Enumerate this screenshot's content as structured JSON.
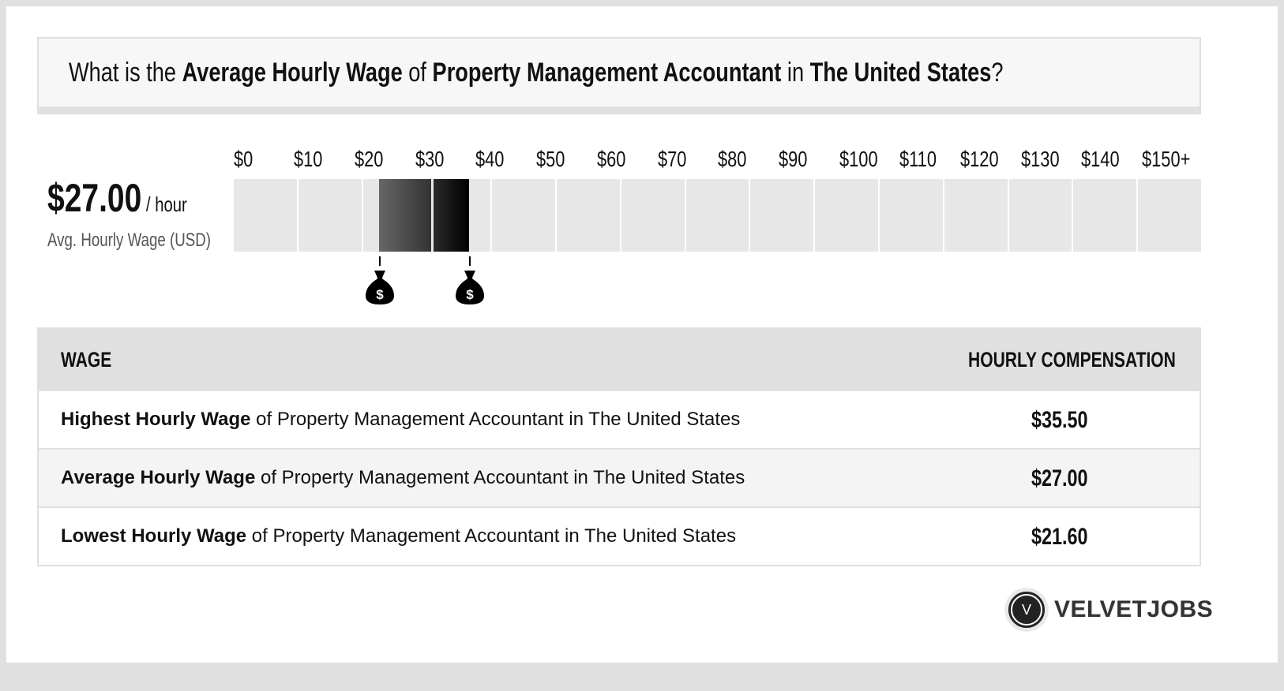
{
  "title": {
    "prefix": "What is the ",
    "metric": "Average Hourly Wage",
    "of": " of ",
    "job": "Property Management Accountant",
    "in": " in ",
    "location": "The United States",
    "suffix": "?"
  },
  "summary": {
    "value": "$27.00",
    "unit": " / hour",
    "label": "Avg. Hourly Wage (USD)"
  },
  "scale": {
    "ticks": [
      "$0",
      "$10",
      "$20",
      "$30",
      "$40",
      "$50",
      "$60",
      "$70",
      "$80",
      "$90",
      "$100",
      "$110",
      "$120",
      "$130",
      "$140",
      "$150+"
    ],
    "low_marker": "money-bag",
    "high_marker": "money-bag"
  },
  "table": {
    "headers": {
      "wage": "WAGE",
      "compensation": "HOURLY COMPENSATION"
    },
    "rows": [
      {
        "bold": "Highest Hourly Wage",
        "rest": " of Property Management Accountant in The United States",
        "value": "$35.50"
      },
      {
        "bold": "Average Hourly Wage",
        "rest": " of Property Management Accountant in The United States",
        "value": "$27.00"
      },
      {
        "bold": "Lowest Hourly Wage",
        "rest": " of Property Management Accountant in The United States",
        "value": "$21.60"
      }
    ]
  },
  "brand": {
    "logo_letter": "V",
    "name": "VELVETJOBS"
  },
  "colors": {
    "frame": "#e0e0e0",
    "segment": "#e7e7e7",
    "range_start": "#666666",
    "range_end": "#000000",
    "row_alt": "#f4f4f4"
  },
  "chart_data": {
    "type": "bar",
    "title": "What is the Average Hourly Wage of Property Management Accountant in The United States?",
    "xlabel": "Hourly Wage (USD)",
    "ylabel": "",
    "x_ticks": [
      "$0",
      "$10",
      "$20",
      "$30",
      "$40",
      "$50",
      "$60",
      "$70",
      "$80",
      "$90",
      "$100",
      "$110",
      "$120",
      "$130",
      "$140",
      "$150+"
    ],
    "xlim": [
      0,
      150
    ],
    "range": {
      "low": 21.6,
      "average": 27.0,
      "high": 35.5
    },
    "categories": [
      "Highest Hourly Wage",
      "Average Hourly Wage",
      "Lowest Hourly Wage"
    ],
    "values": [
      35.5,
      27.0,
      21.6
    ],
    "grid": false,
    "legend": "none"
  }
}
